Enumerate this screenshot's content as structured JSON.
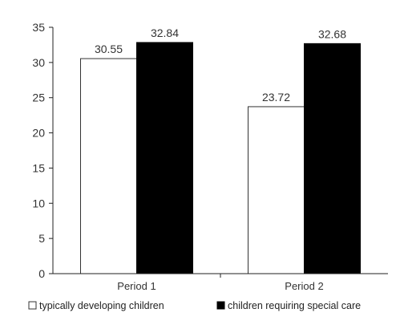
{
  "chart_data": {
    "type": "bar",
    "title": "",
    "xlabel": "",
    "ylabel": "",
    "categories": [
      "Period 1",
      "Period 2"
    ],
    "ylim": [
      0,
      35
    ],
    "yticks": [
      0,
      5,
      10,
      15,
      20,
      25,
      30,
      35
    ],
    "grid": false,
    "legend_position": "bottom",
    "series": [
      {
        "name": "typically developing children",
        "values": [
          30.55,
          23.72
        ],
        "value_labels": [
          "30.55",
          "23.72"
        ],
        "color": "#ffffff"
      },
      {
        "name": "children requiring special care",
        "values": [
          32.84,
          32.68
        ],
        "value_labels": [
          "32.84",
          "32.68"
        ],
        "color": "#000000"
      }
    ]
  }
}
